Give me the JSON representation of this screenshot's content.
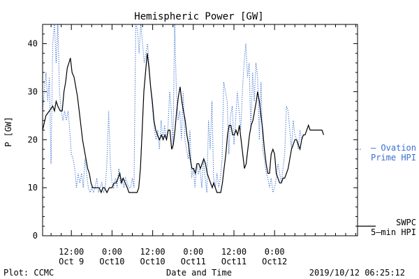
{
  "chart_data": {
    "type": "line",
    "title": "Hemispheric Power [GW]",
    "xlabel": "Date and Time",
    "ylabel": "P [GW]",
    "ylim": [
      0,
      44
    ],
    "xlim": [
      3.5,
      96.5
    ],
    "x_unit": "hours since 2019-10-09 00:00",
    "yticks": [
      0,
      10,
      20,
      30,
      40
    ],
    "xticks": [
      {
        "x": 12,
        "time": "12:00",
        "date": "Oct 9"
      },
      {
        "x": 24,
        "time": "0:00",
        "date": "Oct10"
      },
      {
        "x": 36,
        "time": "12:00",
        "date": "Oct10"
      },
      {
        "x": 48,
        "time": "0:00",
        "date": "Oct11"
      },
      {
        "x": 60,
        "time": "12:00",
        "date": "Oct11"
      },
      {
        "x": 72,
        "time": "0:00",
        "date": "Oct12"
      }
    ],
    "grid": false,
    "legend": [
      {
        "name": "— Ovation Prime HPI",
        "line1": "— Ovation",
        "line2": "Prime HPI",
        "color": "#3a6fd0",
        "style": "dotted",
        "level": 18
      },
      {
        "name": "SWPC 5-min HPI",
        "line1": "SWPC",
        "line2": "5—min HPI",
        "color": "#000000",
        "style": "solid",
        "level": 2
      }
    ],
    "series": [
      {
        "name": "SWPC 5-min HPI",
        "color": "#000000",
        "style": "solid",
        "points": [
          [
            3.5,
            22
          ],
          [
            4.5,
            25
          ],
          [
            5.5,
            26
          ],
          [
            6.5,
            27
          ],
          [
            7,
            26
          ],
          [
            7.5,
            28
          ],
          [
            8,
            27
          ],
          [
            8.7,
            26
          ],
          [
            9.3,
            26
          ],
          [
            9.8,
            30
          ],
          [
            10.3,
            32
          ],
          [
            10.8,
            35
          ],
          [
            11.3,
            36
          ],
          [
            11.7,
            37
          ],
          [
            12.2,
            34
          ],
          [
            12.8,
            33
          ],
          [
            13.3,
            31
          ],
          [
            13.8,
            29
          ],
          [
            14.3,
            26
          ],
          [
            14.8,
            23
          ],
          [
            15.3,
            20
          ],
          [
            15.8,
            18
          ],
          [
            16.3,
            16
          ],
          [
            16.8,
            14
          ],
          [
            17.3,
            13
          ],
          [
            17.8,
            11
          ],
          [
            18.3,
            10
          ],
          [
            18.8,
            10
          ],
          [
            19.5,
            10
          ],
          [
            20.2,
            10
          ],
          [
            20.8,
            9
          ],
          [
            21.3,
            10
          ],
          [
            21.8,
            10
          ],
          [
            22.5,
            9
          ],
          [
            23.2,
            10
          ],
          [
            24,
            10
          ],
          [
            24.6,
            11
          ],
          [
            25.2,
            11
          ],
          [
            25.8,
            12
          ],
          [
            26.3,
            13
          ],
          [
            26.8,
            11
          ],
          [
            27.3,
            12
          ],
          [
            27.9,
            11
          ],
          [
            28.5,
            10
          ],
          [
            29,
            9
          ],
          [
            29.8,
            9
          ],
          [
            30.6,
            9
          ],
          [
            31.4,
            9
          ],
          [
            31.9,
            10
          ],
          [
            32.4,
            14
          ],
          [
            32.9,
            22
          ],
          [
            33.4,
            30
          ],
          [
            33.9,
            34
          ],
          [
            34.4,
            38
          ],
          [
            34.9,
            35
          ],
          [
            35.4,
            31
          ],
          [
            35.9,
            28
          ],
          [
            36.4,
            24
          ],
          [
            36.9,
            22
          ],
          [
            37.4,
            21
          ],
          [
            38,
            20
          ],
          [
            38.6,
            21
          ],
          [
            39.1,
            20
          ],
          [
            39.6,
            21
          ],
          [
            40.1,
            20
          ],
          [
            40.6,
            22
          ],
          [
            41.1,
            22
          ],
          [
            41.6,
            18
          ],
          [
            42.1,
            19
          ],
          [
            42.6,
            22
          ],
          [
            43.1,
            26
          ],
          [
            43.6,
            29
          ],
          [
            44.1,
            31
          ],
          [
            44.6,
            28
          ],
          [
            45.1,
            26
          ],
          [
            45.6,
            24
          ],
          [
            46.1,
            21
          ],
          [
            46.6,
            19
          ],
          [
            47.1,
            16
          ],
          [
            47.6,
            14
          ],
          [
            48.1,
            14
          ],
          [
            48.6,
            13
          ],
          [
            49.1,
            15
          ],
          [
            49.6,
            15
          ],
          [
            50.1,
            14
          ],
          [
            50.6,
            15
          ],
          [
            51.1,
            16
          ],
          [
            51.6,
            15
          ],
          [
            52.1,
            13
          ],
          [
            52.6,
            12
          ],
          [
            53.1,
            11
          ],
          [
            53.6,
            10
          ],
          [
            54,
            11
          ],
          [
            54.5,
            10
          ],
          [
            55,
            9
          ],
          [
            55.6,
            9
          ],
          [
            56.1,
            9
          ],
          [
            56.6,
            11
          ],
          [
            57.1,
            14
          ],
          [
            57.6,
            17
          ],
          [
            58.1,
            21
          ],
          [
            58.6,
            23
          ],
          [
            59.1,
            23
          ],
          [
            59.6,
            21
          ],
          [
            60.1,
            21
          ],
          [
            60.6,
            22
          ],
          [
            61.1,
            21
          ],
          [
            61.6,
            23
          ],
          [
            62.1,
            20
          ],
          [
            62.6,
            17
          ],
          [
            63.1,
            14
          ],
          [
            63.6,
            15
          ],
          [
            64.1,
            18
          ],
          [
            64.6,
            21
          ],
          [
            65.1,
            23
          ],
          [
            65.6,
            24
          ],
          [
            66.1,
            26
          ],
          [
            66.6,
            28
          ],
          [
            67,
            30
          ],
          [
            67.5,
            28
          ],
          [
            68,
            25
          ],
          [
            68.5,
            22
          ],
          [
            69,
            18
          ],
          [
            69.5,
            15
          ],
          [
            70,
            13
          ],
          [
            70.5,
            13
          ],
          [
            71,
            17
          ],
          [
            71.5,
            18
          ],
          [
            72,
            17
          ],
          [
            72.5,
            13
          ],
          [
            73,
            12
          ],
          [
            73.5,
            11
          ],
          [
            74,
            11
          ],
          [
            74.5,
            12
          ],
          [
            75,
            12
          ],
          [
            75.5,
            13
          ],
          [
            76,
            14
          ],
          [
            76.5,
            16
          ],
          [
            77,
            18
          ],
          [
            77.5,
            19
          ],
          [
            78,
            20
          ],
          [
            78.5,
            20
          ],
          [
            79,
            19
          ],
          [
            79.5,
            18
          ],
          [
            80,
            20
          ],
          [
            80.5,
            21
          ],
          [
            81,
            21
          ],
          [
            81.5,
            22
          ],
          [
            82,
            23
          ],
          [
            82.5,
            22
          ],
          [
            83,
            22
          ],
          [
            84,
            22
          ],
          [
            85,
            22
          ],
          [
            86,
            22
          ],
          [
            86.5,
            21
          ]
        ]
      },
      {
        "name": "Ovation Prime HPI",
        "color": "#3a6fd0",
        "style": "dotted",
        "points": [
          [
            3.5,
            26
          ],
          [
            4,
            30
          ],
          [
            4.5,
            34
          ],
          [
            5,
            28
          ],
          [
            5.5,
            33
          ],
          [
            6,
            15
          ],
          [
            6.5,
            40
          ],
          [
            7,
            44
          ],
          [
            7.5,
            36
          ],
          [
            8,
            44
          ],
          [
            8.5,
            30
          ],
          [
            9,
            26
          ],
          [
            9.5,
            24
          ],
          [
            10,
            26
          ],
          [
            10.5,
            24
          ],
          [
            11,
            26
          ],
          [
            11.5,
            22
          ],
          [
            12,
            17
          ],
          [
            12.5,
            16
          ],
          [
            13,
            14
          ],
          [
            13.5,
            10
          ],
          [
            14,
            13
          ],
          [
            14.5,
            11
          ],
          [
            15,
            13
          ],
          [
            15.5,
            10
          ],
          [
            16,
            16
          ],
          [
            16.5,
            13
          ],
          [
            17,
            10
          ],
          [
            17.5,
            9
          ],
          [
            18,
            10
          ],
          [
            18.5,
            9
          ],
          [
            19,
            10
          ],
          [
            19.5,
            12
          ],
          [
            20,
            9
          ],
          [
            20.5,
            10
          ],
          [
            21,
            11
          ],
          [
            21.5,
            9
          ],
          [
            22,
            10
          ],
          [
            22.5,
            15
          ],
          [
            23,
            26
          ],
          [
            23.5,
            15
          ],
          [
            24,
            11
          ],
          [
            24.5,
            10
          ],
          [
            25,
            12
          ],
          [
            25.5,
            10
          ],
          [
            26,
            14
          ],
          [
            26.5,
            11
          ],
          [
            27,
            12
          ],
          [
            27.5,
            10
          ],
          [
            28,
            12
          ],
          [
            28.5,
            11
          ],
          [
            29,
            10
          ],
          [
            29.5,
            10
          ],
          [
            30,
            12
          ],
          [
            30.5,
            10
          ],
          [
            31,
            44
          ],
          [
            31.5,
            43
          ],
          [
            32,
            38
          ],
          [
            32.5,
            44
          ],
          [
            33,
            40
          ],
          [
            33.5,
            36
          ],
          [
            34,
            38
          ],
          [
            34.5,
            40
          ],
          [
            35,
            35
          ],
          [
            35.5,
            30
          ],
          [
            36,
            26
          ],
          [
            36.5,
            22
          ],
          [
            37,
            20
          ],
          [
            37.5,
            22
          ],
          [
            38,
            18
          ],
          [
            38.5,
            24
          ],
          [
            39,
            20
          ],
          [
            39.5,
            23
          ],
          [
            40,
            20
          ],
          [
            40.5,
            22
          ],
          [
            41,
            30
          ],
          [
            41.5,
            26
          ],
          [
            42,
            18
          ],
          [
            42.5,
            44
          ],
          [
            43,
            30
          ],
          [
            43.5,
            24
          ],
          [
            44,
            26
          ],
          [
            44.5,
            20
          ],
          [
            45,
            30
          ],
          [
            45.5,
            20
          ],
          [
            46,
            18
          ],
          [
            46.5,
            16
          ],
          [
            47,
            22
          ],
          [
            47.5,
            12
          ],
          [
            48,
            14
          ],
          [
            48.5,
            10
          ],
          [
            49,
            15
          ],
          [
            49.5,
            13
          ],
          [
            50,
            14
          ],
          [
            50.5,
            10
          ],
          [
            51,
            16
          ],
          [
            51.5,
            12
          ],
          [
            52,
            9
          ],
          [
            52.5,
            24
          ],
          [
            53,
            18
          ],
          [
            53.5,
            28
          ],
          [
            54,
            12
          ],
          [
            54.5,
            10
          ],
          [
            55,
            13
          ],
          [
            55.5,
            10
          ],
          [
            56,
            12
          ],
          [
            56.5,
            16
          ],
          [
            57,
            32
          ],
          [
            57.5,
            30
          ],
          [
            58,
            28
          ],
          [
            58.5,
            17
          ],
          [
            59,
            25
          ],
          [
            59.5,
            27
          ],
          [
            60,
            19
          ],
          [
            60.5,
            24
          ],
          [
            61,
            30
          ],
          [
            61.5,
            26
          ],
          [
            62,
            22
          ],
          [
            62.5,
            30
          ],
          [
            63,
            36
          ],
          [
            63.5,
            40
          ],
          [
            64,
            33
          ],
          [
            64.5,
            36
          ],
          [
            65,
            22
          ],
          [
            65.5,
            34
          ],
          [
            66,
            28
          ],
          [
            66.5,
            36
          ],
          [
            67,
            33
          ],
          [
            67.5,
            20
          ],
          [
            68,
            32
          ],
          [
            68.5,
            18
          ],
          [
            69,
            16
          ],
          [
            69.5,
            13
          ],
          [
            70,
            12
          ],
          [
            70.5,
            10
          ],
          [
            71,
            12
          ],
          [
            71.5,
            9
          ],
          [
            72,
            10
          ],
          [
            72.5,
            12
          ],
          [
            73,
            15
          ],
          [
            73.5,
            13
          ],
          [
            74,
            11
          ],
          [
            74.5,
            14
          ],
          [
            75,
            17
          ],
          [
            75.5,
            27
          ],
          [
            76,
            26
          ],
          [
            76.5,
            22
          ],
          [
            77,
            18
          ],
          [
            77.5,
            24
          ],
          [
            78,
            21
          ],
          [
            78.5,
            20
          ],
          [
            79,
            18
          ],
          [
            79.5,
            22
          ],
          [
            80,
            20
          ],
          [
            80.5,
            21
          ]
        ]
      }
    ]
  },
  "footer": {
    "left": "Plot: CCMC",
    "right": "2019/10/12 06:25:12"
  }
}
